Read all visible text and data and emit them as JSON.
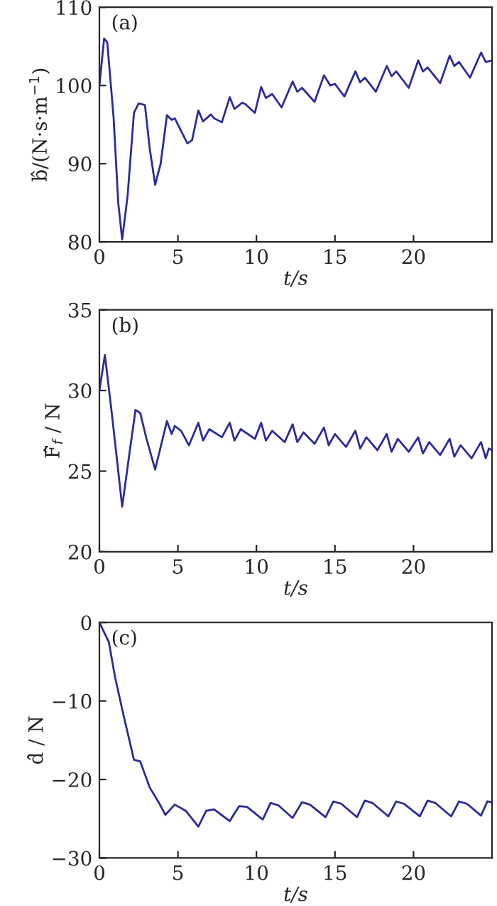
{
  "chart_data": [
    {
      "type": "line",
      "xlabel": "t/s",
      "ylabel": "b̂/(N·s·m$^{−1}$)",
      "annotations": [
        "(a)"
      ],
      "color": "#2b2b9a",
      "xlim": [
        0,
        25
      ],
      "ylim": [
        80,
        110
      ],
      "xticks": [
        0,
        5,
        10,
        15,
        20
      ],
      "yticks": [
        80,
        90,
        100,
        110
      ],
      "x": [
        0,
        0.3,
        0.5,
        0.9,
        1.2,
        1.45,
        1.8,
        2.2,
        2.5,
        2.9,
        3.2,
        3.55,
        3.9,
        4.3,
        4.6,
        4.8,
        5.1,
        5.6,
        5.9,
        6.3,
        6.6,
        7.1,
        7.3,
        7.8,
        8.3,
        8.6,
        9.1,
        9.3,
        9.9,
        10.3,
        10.6,
        11,
        11.6,
        12.3,
        12.6,
        12.9,
        13.7,
        14.3,
        14.7,
        15,
        15.6,
        16.3,
        16.6,
        16.9,
        17.6,
        18.3,
        18.6,
        18.9,
        19.7,
        20.3,
        20.6,
        20.9,
        21.7,
        22.3,
        22.6,
        22.9,
        23.6,
        24.3,
        24.6,
        25
      ],
      "values": [
        100,
        106,
        105.5,
        96,
        85,
        80.3,
        86,
        96.5,
        97.7,
        97.5,
        92,
        87.3,
        90,
        96.2,
        95.6,
        95.8,
        94.6,
        92.6,
        93,
        96.8,
        95.4,
        96.3,
        95.8,
        95.3,
        98.5,
        97,
        97.8,
        97.6,
        96.5,
        99.8,
        98.4,
        98.9,
        97.2,
        100.5,
        99.2,
        99.7,
        97.9,
        101.3,
        100,
        100.2,
        98.6,
        101.8,
        100.4,
        101,
        99.2,
        102.5,
        101.2,
        101.8,
        99.7,
        103.2,
        101.8,
        102.3,
        100.3,
        103.8,
        102.5,
        103,
        101,
        104.2,
        103,
        103.2
      ]
    },
    {
      "type": "line",
      "xlabel": "t/s",
      "ylabel": "F̂$_{f}$ / N",
      "annotations": [
        "(b)"
      ],
      "color": "#2b2b9a",
      "xlim": [
        0,
        25
      ],
      "ylim": [
        20,
        35
      ],
      "xticks": [
        0,
        5,
        10,
        15,
        20
      ],
      "yticks": [
        20,
        25,
        30,
        35
      ],
      "x": [
        0,
        0.35,
        0.8,
        1.45,
        1.9,
        2.3,
        2.6,
        3,
        3.55,
        3.9,
        4.3,
        4.6,
        4.8,
        5.2,
        5.7,
        6.3,
        6.6,
        7,
        7.8,
        8.3,
        8.6,
        9,
        9.9,
        10.3,
        10.6,
        11,
        11.8,
        12.3,
        12.6,
        13,
        13.7,
        14.3,
        14.6,
        15,
        15.7,
        16.3,
        16.6,
        17,
        17.7,
        18.3,
        18.6,
        19,
        19.7,
        20.3,
        20.6,
        21,
        21.7,
        22.3,
        22.6,
        23,
        23.7,
        24.3,
        24.6,
        24.8,
        25
      ],
      "values": [
        30,
        32.2,
        28.5,
        22.8,
        26,
        28.8,
        28.6,
        27,
        25.1,
        26.5,
        28.1,
        27.3,
        27.8,
        27.5,
        26.6,
        28,
        26.9,
        27.6,
        27.1,
        28,
        26.9,
        27.6,
        27,
        28,
        26.9,
        27.5,
        26.8,
        27.9,
        26.8,
        27.4,
        26.7,
        27.7,
        26.6,
        27.3,
        26.5,
        27.5,
        26.4,
        27.1,
        26.3,
        27.3,
        26.2,
        27,
        26.2,
        27.1,
        26.1,
        26.8,
        26,
        27,
        25.9,
        26.6,
        25.8,
        26.8,
        25.8,
        26.4,
        26.3
      ]
    },
    {
      "type": "line",
      "xlabel": "t/s",
      "ylabel": "d̂ / N",
      "annotations": [
        "(c)"
      ],
      "color": "#2b2b9a",
      "xlim": [
        0,
        25
      ],
      "ylim": [
        -30,
        0
      ],
      "xticks": [
        0,
        5,
        10,
        15,
        20
      ],
      "yticks": [
        -30,
        -20,
        -10,
        0
      ],
      "x": [
        0,
        0.6,
        1,
        1.5,
        2.2,
        2.6,
        3.2,
        3.8,
        4.2,
        4.8,
        5.5,
        6.3,
        6.8,
        7.3,
        8.3,
        8.9,
        9.4,
        10.4,
        10.9,
        11.4,
        12.3,
        12.9,
        13.4,
        14.4,
        14.9,
        15.4,
        16.4,
        16.9,
        17.4,
        18.4,
        18.9,
        19.4,
        20.4,
        20.9,
        21.4,
        22.4,
        22.9,
        23.4,
        24.3,
        24.7,
        25
      ],
      "values": [
        0,
        -2.5,
        -7,
        -11.5,
        -17.5,
        -17.7,
        -21,
        -23,
        -24.5,
        -23.2,
        -24,
        -26,
        -24,
        -23.8,
        -25.3,
        -23.4,
        -23.5,
        -25.1,
        -23,
        -23.3,
        -24.9,
        -22.9,
        -23.2,
        -24.8,
        -22.8,
        -23.1,
        -24.8,
        -22.7,
        -23,
        -24.7,
        -22.8,
        -23.1,
        -24.7,
        -22.7,
        -23,
        -24.7,
        -22.8,
        -23.1,
        -24.6,
        -22.8,
        -22.9
      ]
    }
  ]
}
